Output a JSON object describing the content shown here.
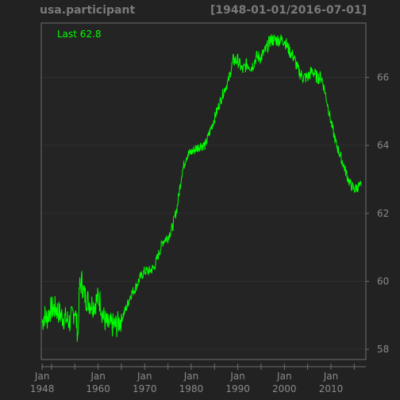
{
  "header": {
    "series_title": "usa.participant",
    "date_range": "[1948-01-01/2016-07-01]"
  },
  "colors": {
    "background": "#222222",
    "panel": "#242424",
    "line": "#00ff00",
    "grid": "#2f2f2f",
    "axis_text": "#8a8a8a",
    "title_text": "#7a7a7a"
  },
  "chart_data": {
    "type": "line",
    "title": "usa.participant",
    "subtitle": "[1948-01-01/2016-07-01]",
    "xlabel": "",
    "ylabel": "",
    "xlim": [
      1947.8,
      2017.5
    ],
    "ylim": [
      57.7,
      67.6
    ],
    "y_ticks": [
      58,
      60,
      62,
      64,
      66
    ],
    "y_tick_labels": [
      "58",
      "60",
      "62",
      "64",
      "66"
    ],
    "x_ticks": [
      1948,
      1960,
      1970,
      1980,
      1990,
      2000,
      2010
    ],
    "x_tick_labels": [
      {
        "month": "Jan",
        "year": "1948"
      },
      {
        "month": "Jan",
        "year": "1960"
      },
      {
        "month": "Jan",
        "year": "1970"
      },
      {
        "month": "Jan",
        "year": "1980"
      },
      {
        "month": "Jan",
        "year": "1990"
      },
      {
        "month": "Jan",
        "year": "2000"
      },
      {
        "month": "Jan",
        "year": "2010"
      }
    ],
    "x_minor_ticks": [
      1950,
      1955,
      1965,
      1975,
      1985,
      1995,
      2005,
      2015
    ],
    "grid": true,
    "last_label": "Last 62.8",
    "series": [
      {
        "x": [
          1948,
          1948.5,
          1949,
          1949.5,
          1950,
          1951,
          1952,
          1953,
          1954,
          1955,
          1955.7,
          1956,
          1956.5,
          1957,
          1958,
          1959,
          1960,
          1960.5,
          1961,
          1962,
          1963,
          1964,
          1965,
          1966,
          1967,
          1968,
          1969,
          1970,
          1971,
          1972,
          1973,
          1974,
          1975,
          1976,
          1977,
          1978,
          1979,
          1980,
          1981,
          1982,
          1983,
          1984,
          1985,
          1986,
          1987,
          1988,
          1989,
          1990,
          1991,
          1992,
          1993,
          1994,
          1995,
          1996,
          1997,
          1998,
          1999,
          2000,
          2001,
          2002,
          2003,
          2004,
          2005,
          2006,
          2007,
          2008,
          2009,
          2010,
          2011,
          2012,
          2013,
          2014,
          2015,
          2016,
          2016.5
        ],
        "values": [
          58.8,
          59.0,
          58.9,
          59.1,
          59.2,
          59.2,
          59.0,
          58.9,
          58.8,
          59.2,
          58.4,
          59.8,
          60.0,
          59.6,
          59.4,
          59.3,
          59.5,
          59.4,
          59.0,
          58.7,
          58.7,
          58.7,
          58.9,
          59.2,
          59.6,
          59.8,
          60.1,
          60.3,
          60.3,
          60.4,
          60.8,
          61.2,
          61.3,
          61.6,
          62.2,
          63.2,
          63.7,
          63.8,
          63.9,
          64.0,
          64.0,
          64.4,
          64.8,
          65.2,
          65.6,
          65.9,
          66.5,
          66.5,
          66.2,
          66.4,
          66.3,
          66.6,
          66.6,
          66.8,
          67.1,
          67.1,
          67.1,
          67.1,
          66.8,
          66.6,
          66.2,
          66.0,
          66.0,
          66.2,
          66.0,
          66.0,
          65.4,
          64.7,
          64.1,
          63.7,
          63.3,
          62.9,
          62.7,
          62.8,
          62.8
        ]
      }
    ]
  }
}
